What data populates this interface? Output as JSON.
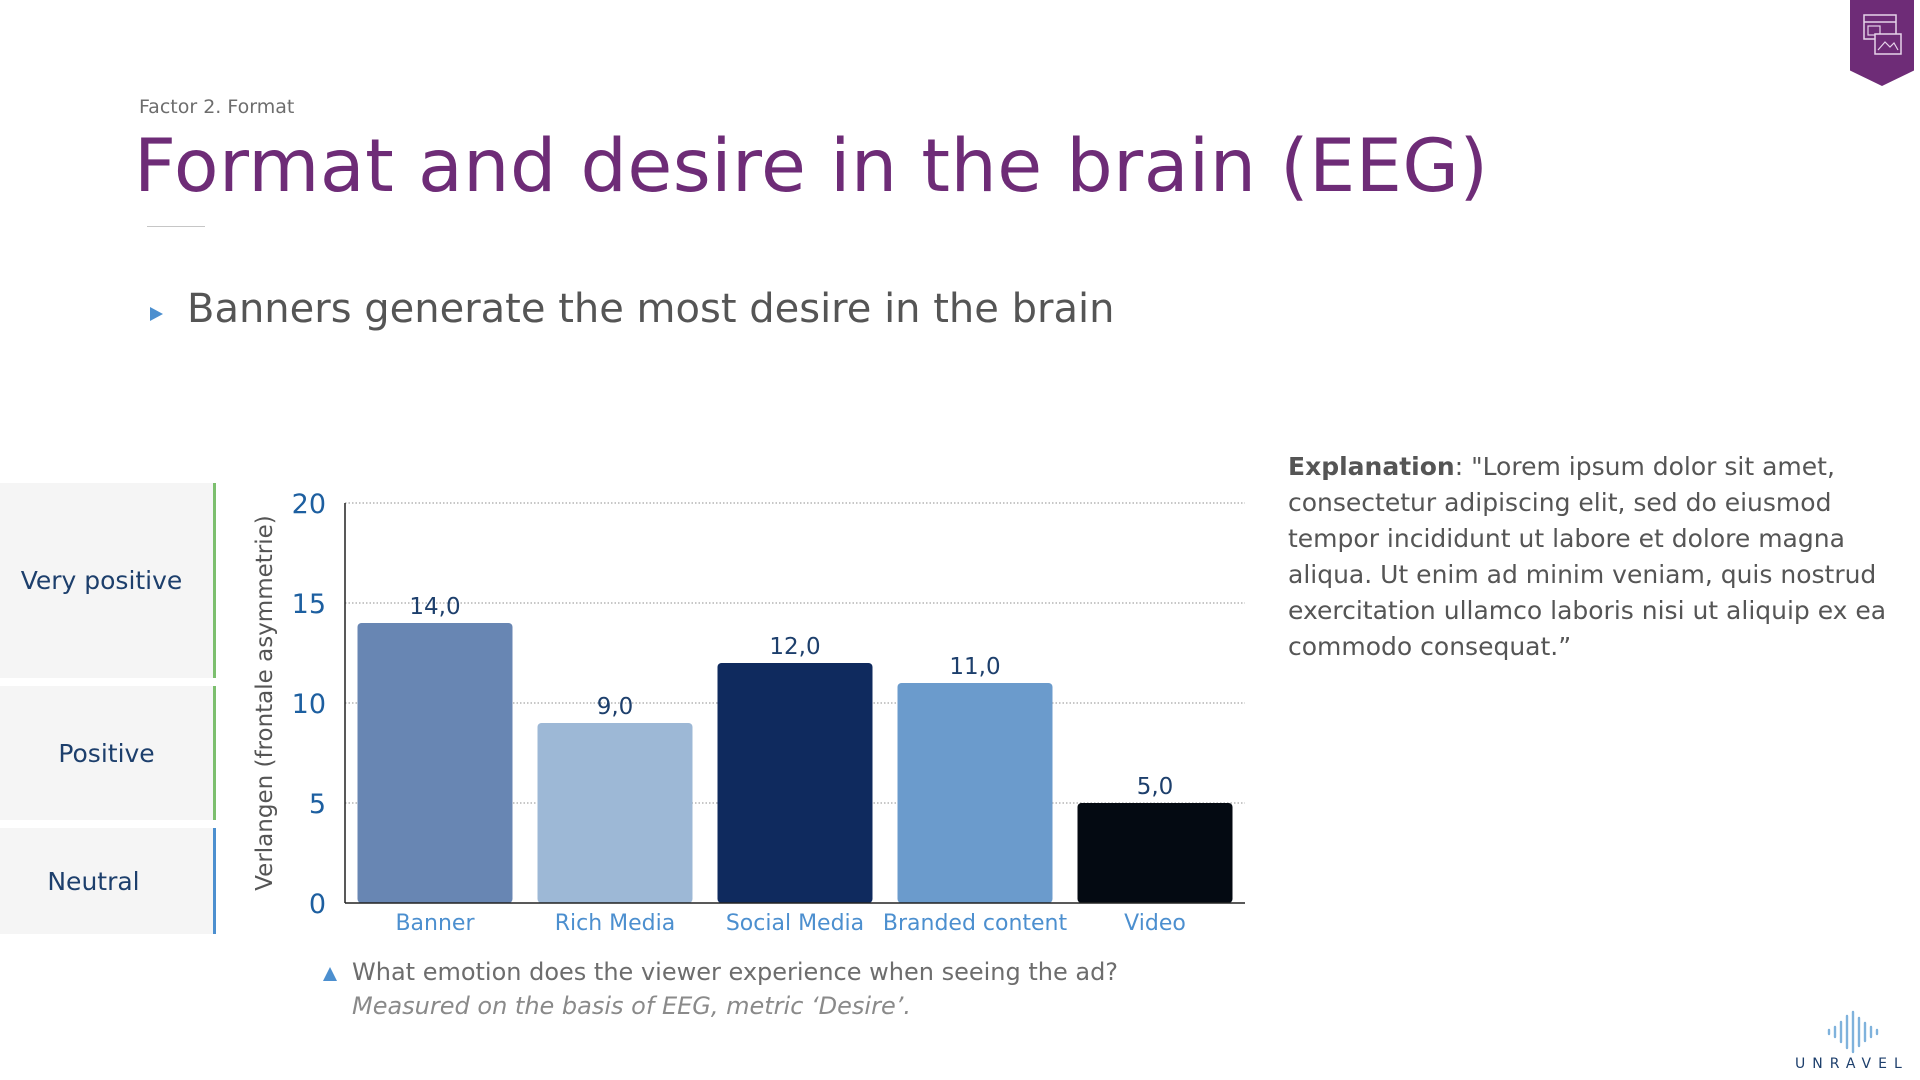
{
  "header": {
    "eyebrow": "Factor 2. Format",
    "title": "Format and desire in the brain (EEG)",
    "badge_icon": "layout-icon"
  },
  "bullet": {
    "text": "Banners generate the most desire in the brain"
  },
  "scale_labels": [
    "Very positive",
    "Positive",
    "Neutral"
  ],
  "chart_data": {
    "type": "bar",
    "categories": [
      "Banner",
      "Rich Media",
      "Social Media",
      "Branded content",
      "Video"
    ],
    "values": [
      14.0,
      9.0,
      12.0,
      11.0,
      5.0
    ],
    "value_labels": [
      "14,0",
      "9,0",
      "12,0",
      "11,0",
      "5,0"
    ],
    "bar_colors": [
      "#6886b3",
      "#9db8d6",
      "#0f2a5e",
      "#6b9bcc",
      "#040a12"
    ],
    "ylabel": "Verlangen (frontale asymmetrie)",
    "xlabel": "",
    "ylim": [
      0,
      20
    ],
    "yticks": [
      0,
      5,
      10,
      15,
      20
    ],
    "grid": true
  },
  "explanation": {
    "label": "Explanation",
    "text": ": \"Lorem ipsum dolor sit amet, consectetur adipiscing elit, sed do eiusmod tempor incididunt ut labore et dolore magna aliqua. Ut enim ad minim veniam, quis nostrud exercitation ullamco laboris nisi ut aliquip ex ea commodo consequat.”"
  },
  "footnote": {
    "question": "What emotion does the viewer experience when seeing the ad?",
    "method": "Measured on the basis of EEG, metric ‘Desire’."
  },
  "logo": {
    "text": "UNRAVEL",
    "icon": "waveform-icon"
  },
  "colors": {
    "accent_purple": "#6e2c77",
    "accent_blue": "#4c8fcf",
    "axis_blue": "#1d5fa0",
    "category_blue": "#4c8fcf",
    "text_gray": "#555555"
  }
}
